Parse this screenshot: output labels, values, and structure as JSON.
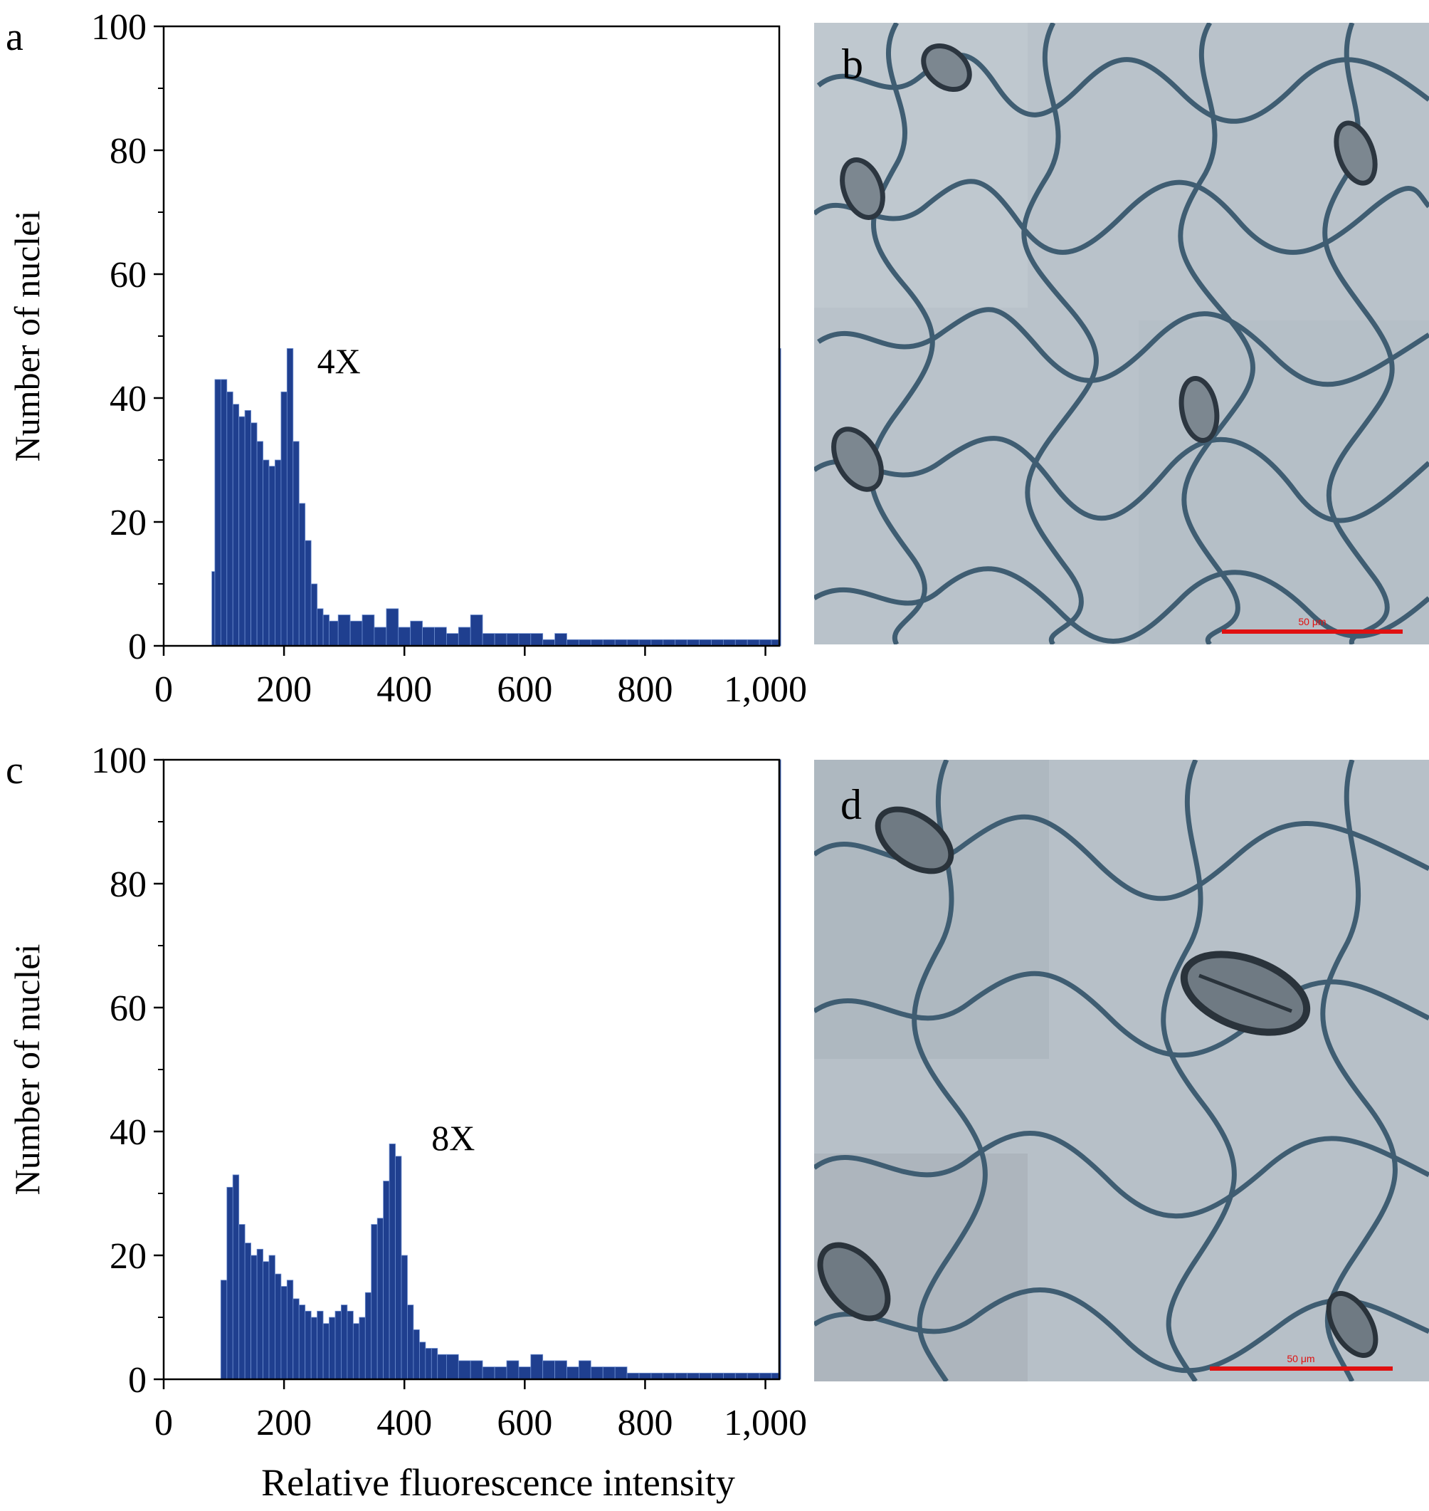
{
  "panels": [
    {
      "id": "a",
      "letter": "a",
      "kind": "histogram",
      "chart_index": 0
    },
    {
      "id": "b",
      "letter": "b",
      "kind": "micrograph",
      "scale_bar_label": "50 μm"
    },
    {
      "id": "c",
      "letter": "c",
      "kind": "histogram",
      "chart_index": 1
    },
    {
      "id": "d",
      "letter": "d",
      "kind": "micrograph",
      "scale_bar_label": "50 μm"
    }
  ],
  "colors": {
    "bars": "#1f3f8f",
    "bar_edge": "#6f8fd0",
    "axis": "#000000",
    "scale_bar": "#e01010",
    "micrograph_bg": "#b9c2ca",
    "cell_wall": "#3f5d72"
  },
  "chart_data": [
    {
      "type": "bar",
      "panel": "a",
      "title": "",
      "xlabel": "",
      "ylabel": "Number of nuclei",
      "xlim": [
        0,
        1023
      ],
      "ylim": [
        0,
        100
      ],
      "xticks": [
        0,
        200,
        400,
        600,
        800,
        1000
      ],
      "xtick_labels": [
        "0",
        "200",
        "400",
        "600",
        "800",
        "1,000"
      ],
      "yticks": [
        0,
        20,
        40,
        60,
        80,
        100
      ],
      "ytick_labels": [
        "0",
        "20",
        "40",
        "60",
        "80",
        "100"
      ],
      "grid": false,
      "annotation": {
        "text": "4X",
        "x": 255,
        "y": 44
      },
      "bins": [
        {
          "x": 80,
          "y": 12
        },
        {
          "x": 85,
          "y": 43
        },
        {
          "x": 95,
          "y": 43
        },
        {
          "x": 105,
          "y": 41
        },
        {
          "x": 115,
          "y": 39
        },
        {
          "x": 125,
          "y": 37
        },
        {
          "x": 135,
          "y": 38
        },
        {
          "x": 145,
          "y": 36
        },
        {
          "x": 155,
          "y": 33
        },
        {
          "x": 165,
          "y": 30
        },
        {
          "x": 175,
          "y": 29
        },
        {
          "x": 185,
          "y": 30
        },
        {
          "x": 195,
          "y": 41
        },
        {
          "x": 205,
          "y": 48
        },
        {
          "x": 215,
          "y": 33
        },
        {
          "x": 225,
          "y": 23
        },
        {
          "x": 235,
          "y": 17
        },
        {
          "x": 245,
          "y": 10
        },
        {
          "x": 255,
          "y": 6
        },
        {
          "x": 265,
          "y": 5
        },
        {
          "x": 275,
          "y": 4
        },
        {
          "x": 290,
          "y": 5
        },
        {
          "x": 310,
          "y": 4
        },
        {
          "x": 330,
          "y": 5
        },
        {
          "x": 350,
          "y": 3
        },
        {
          "x": 370,
          "y": 6
        },
        {
          "x": 390,
          "y": 3
        },
        {
          "x": 410,
          "y": 4
        },
        {
          "x": 430,
          "y": 3
        },
        {
          "x": 450,
          "y": 3
        },
        {
          "x": 470,
          "y": 2
        },
        {
          "x": 490,
          "y": 3
        },
        {
          "x": 510,
          "y": 5
        },
        {
          "x": 530,
          "y": 2
        },
        {
          "x": 550,
          "y": 2
        },
        {
          "x": 570,
          "y": 2
        },
        {
          "x": 590,
          "y": 2
        },
        {
          "x": 610,
          "y": 2
        },
        {
          "x": 630,
          "y": 1
        },
        {
          "x": 650,
          "y": 2
        },
        {
          "x": 670,
          "y": 1
        },
        {
          "x": 690,
          "y": 1
        },
        {
          "x": 710,
          "y": 1
        },
        {
          "x": 730,
          "y": 1
        },
        {
          "x": 750,
          "y": 1
        },
        {
          "x": 770,
          "y": 1
        },
        {
          "x": 790,
          "y": 1
        },
        {
          "x": 810,
          "y": 1
        },
        {
          "x": 830,
          "y": 1
        },
        {
          "x": 850,
          "y": 1
        },
        {
          "x": 870,
          "y": 1
        },
        {
          "x": 890,
          "y": 1
        },
        {
          "x": 910,
          "y": 1
        },
        {
          "x": 930,
          "y": 1
        },
        {
          "x": 950,
          "y": 1
        },
        {
          "x": 970,
          "y": 1
        },
        {
          "x": 990,
          "y": 1
        },
        {
          "x": 1010,
          "y": 1
        },
        {
          "x": 1022,
          "y": 48
        }
      ]
    },
    {
      "type": "bar",
      "panel": "c",
      "title": "",
      "xlabel": "Relative fluorescence intensity",
      "ylabel": "Number of nuclei",
      "xlim": [
        0,
        1023
      ],
      "ylim": [
        0,
        100
      ],
      "xticks": [
        0,
        200,
        400,
        600,
        800,
        1000
      ],
      "xtick_labels": [
        "0",
        "200",
        "400",
        "600",
        "800",
        "1,000"
      ],
      "yticks": [
        0,
        20,
        40,
        60,
        80,
        100
      ],
      "ytick_labels": [
        "0",
        "20",
        "40",
        "60",
        "80",
        "100"
      ],
      "grid": false,
      "annotation": {
        "text": "8X",
        "x": 445,
        "y": 37
      },
      "bins": [
        {
          "x": 95,
          "y": 16
        },
        {
          "x": 105,
          "y": 31
        },
        {
          "x": 115,
          "y": 33
        },
        {
          "x": 125,
          "y": 25
        },
        {
          "x": 135,
          "y": 22
        },
        {
          "x": 145,
          "y": 20
        },
        {
          "x": 155,
          "y": 21
        },
        {
          "x": 165,
          "y": 19
        },
        {
          "x": 175,
          "y": 20
        },
        {
          "x": 185,
          "y": 17
        },
        {
          "x": 195,
          "y": 15
        },
        {
          "x": 205,
          "y": 16
        },
        {
          "x": 215,
          "y": 13
        },
        {
          "x": 225,
          "y": 12
        },
        {
          "x": 235,
          "y": 11
        },
        {
          "x": 245,
          "y": 10
        },
        {
          "x": 255,
          "y": 11
        },
        {
          "x": 265,
          "y": 9
        },
        {
          "x": 275,
          "y": 10
        },
        {
          "x": 285,
          "y": 11
        },
        {
          "x": 295,
          "y": 12
        },
        {
          "x": 305,
          "y": 11
        },
        {
          "x": 315,
          "y": 9
        },
        {
          "x": 325,
          "y": 10
        },
        {
          "x": 335,
          "y": 14
        },
        {
          "x": 345,
          "y": 25
        },
        {
          "x": 355,
          "y": 26
        },
        {
          "x": 365,
          "y": 32
        },
        {
          "x": 375,
          "y": 38
        },
        {
          "x": 385,
          "y": 36
        },
        {
          "x": 395,
          "y": 20
        },
        {
          "x": 405,
          "y": 12
        },
        {
          "x": 415,
          "y": 8
        },
        {
          "x": 425,
          "y": 6
        },
        {
          "x": 435,
          "y": 5
        },
        {
          "x": 445,
          "y": 5
        },
        {
          "x": 455,
          "y": 4
        },
        {
          "x": 470,
          "y": 4
        },
        {
          "x": 490,
          "y": 3
        },
        {
          "x": 510,
          "y": 3
        },
        {
          "x": 530,
          "y": 2
        },
        {
          "x": 550,
          "y": 2
        },
        {
          "x": 570,
          "y": 3
        },
        {
          "x": 590,
          "y": 2
        },
        {
          "x": 610,
          "y": 4
        },
        {
          "x": 630,
          "y": 3
        },
        {
          "x": 650,
          "y": 3
        },
        {
          "x": 670,
          "y": 2
        },
        {
          "x": 690,
          "y": 3
        },
        {
          "x": 710,
          "y": 2
        },
        {
          "x": 730,
          "y": 2
        },
        {
          "x": 750,
          "y": 2
        },
        {
          "x": 770,
          "y": 1
        },
        {
          "x": 790,
          "y": 1
        },
        {
          "x": 810,
          "y": 1
        },
        {
          "x": 830,
          "y": 1
        },
        {
          "x": 850,
          "y": 1
        },
        {
          "x": 870,
          "y": 1
        },
        {
          "x": 890,
          "y": 1
        },
        {
          "x": 910,
          "y": 1
        },
        {
          "x": 930,
          "y": 1
        },
        {
          "x": 950,
          "y": 1
        },
        {
          "x": 970,
          "y": 1
        },
        {
          "x": 990,
          "y": 1
        },
        {
          "x": 1010,
          "y": 1
        },
        {
          "x": 1022,
          "y": 100
        }
      ]
    }
  ]
}
